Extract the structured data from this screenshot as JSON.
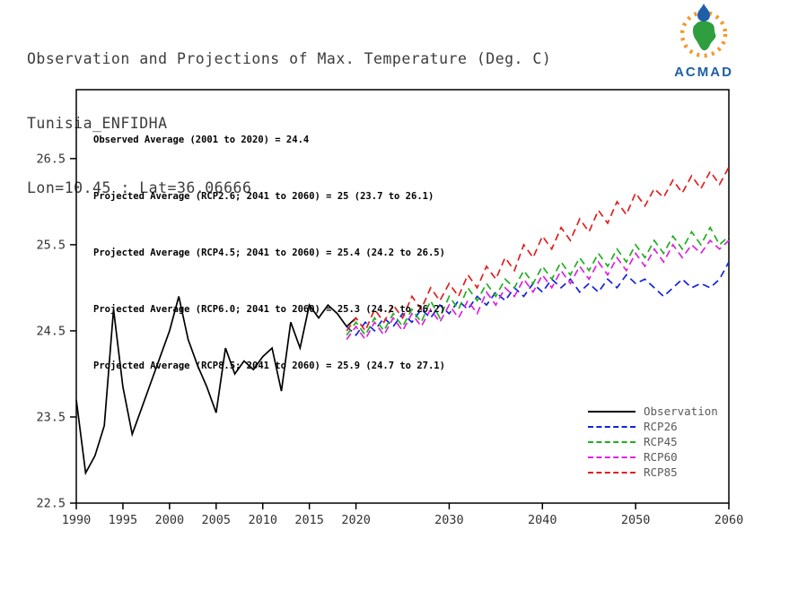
{
  "header": {
    "title": "Observation and Projections of Max. Temperature (Deg. C)",
    "station": "Tunisia_ENFIDHA",
    "coords": "Lon=10.45 : Lat=36.06666"
  },
  "logo": {
    "text": "ACMAD",
    "sun_color": "#F2992E",
    "africa_color": "#2E9E3E",
    "drop_color": "#1E5FA8",
    "text_color": "#1E5FA8"
  },
  "chart_data": {
    "type": "line",
    "title": "Observation and Projections of Max. Temperature (Deg. C)",
    "subtitle": "Tunisia_ENFIDHA Lon=10.45 : Lat=36.06666",
    "xlabel": "",
    "ylabel": "",
    "xlim": [
      1990,
      2060
    ],
    "ylim": [
      22.5,
      27.3
    ],
    "xticks": [
      1990,
      1995,
      2000,
      2005,
      2010,
      2015,
      2020,
      2030,
      2040,
      2050,
      2060
    ],
    "yticks": [
      22.5,
      23.5,
      24.5,
      25.5,
      26.5
    ],
    "grid": false,
    "legend_position": "inside-bottom-right",
    "annotations": [
      "Observed Average (2001 to 2020) = 24.4",
      "Projected Average (RCP2.6; 2041 to 2060) = 25 (23.7 to 26.1)",
      "Projected Average (RCP4.5; 2041 to 2060) = 25.4 (24.2 to 26.5)",
      "Projected Average (RCP6.0; 2041 to 2060) = 25.3 (24.2 to 26.2)",
      "Projected Average (RCP8.5; 2041 to 2060) = 25.9 (24.7 to 27.1)"
    ],
    "series": [
      {
        "name": "Observation",
        "color": "#000000",
        "line_style": "solid",
        "years": [
          1990,
          1991,
          1992,
          1993,
          1994,
          1995,
          1996,
          1997,
          1998,
          1999,
          2000,
          2001,
          2002,
          2003,
          2004,
          2005,
          2006,
          2007,
          2008,
          2009,
          2010,
          2011,
          2012,
          2013,
          2014,
          2015,
          2016,
          2017,
          2018,
          2019,
          2020
        ],
        "values": [
          23.7,
          22.85,
          23.05,
          23.4,
          24.75,
          23.85,
          23.3,
          23.6,
          23.9,
          24.2,
          24.5,
          24.9,
          24.4,
          24.1,
          23.85,
          23.55,
          24.3,
          24.0,
          24.15,
          24.05,
          24.2,
          24.3,
          23.8,
          24.6,
          24.3,
          24.8,
          24.65,
          24.8,
          24.7,
          24.55,
          24.65
        ]
      },
      {
        "name": "RCP26",
        "color": "#1122DD",
        "line_style": "dashed",
        "years": [
          2019,
          2020,
          2021,
          2022,
          2023,
          2024,
          2025,
          2026,
          2027,
          2028,
          2029,
          2030,
          2031,
          2032,
          2033,
          2034,
          2035,
          2036,
          2037,
          2038,
          2039,
          2040,
          2041,
          2042,
          2043,
          2044,
          2045,
          2046,
          2047,
          2048,
          2049,
          2050,
          2051,
          2052,
          2053,
          2054,
          2055,
          2056,
          2057,
          2058,
          2059,
          2060
        ],
        "values": [
          24.55,
          24.45,
          24.6,
          24.5,
          24.65,
          24.55,
          24.7,
          24.6,
          24.75,
          24.65,
          24.8,
          24.7,
          24.85,
          24.75,
          24.9,
          24.8,
          24.95,
          24.85,
          25.0,
          24.9,
          25.05,
          24.95,
          25.1,
          25.0,
          25.1,
          24.95,
          25.05,
          24.95,
          25.1,
          25.0,
          25.15,
          25.05,
          25.1,
          25.0,
          24.9,
          25.0,
          25.1,
          25.0,
          25.05,
          25.0,
          25.1,
          25.3
        ]
      },
      {
        "name": "RCP45",
        "color": "#1FAF1F",
        "line_style": "dashed",
        "years": [
          2019,
          2020,
          2021,
          2022,
          2023,
          2024,
          2025,
          2026,
          2027,
          2028,
          2029,
          2030,
          2031,
          2032,
          2033,
          2034,
          2035,
          2036,
          2037,
          2038,
          2039,
          2040,
          2041,
          2042,
          2043,
          2044,
          2045,
          2046,
          2047,
          2048,
          2049,
          2050,
          2051,
          2052,
          2053,
          2054,
          2055,
          2056,
          2057,
          2058,
          2059,
          2060
        ],
        "values": [
          24.45,
          24.6,
          24.45,
          24.65,
          24.5,
          24.7,
          24.55,
          24.75,
          24.6,
          24.85,
          24.65,
          24.9,
          24.75,
          25.0,
          24.85,
          25.05,
          24.9,
          25.1,
          25.0,
          25.2,
          25.05,
          25.25,
          25.1,
          25.3,
          25.15,
          25.35,
          25.2,
          25.4,
          25.25,
          25.45,
          25.3,
          25.5,
          25.35,
          25.55,
          25.4,
          25.6,
          25.45,
          25.65,
          25.5,
          25.7,
          25.5,
          25.6
        ]
      },
      {
        "name": "RCP60",
        "color": "#DD22DD",
        "line_style": "dashed",
        "years": [
          2019,
          2020,
          2021,
          2022,
          2023,
          2024,
          2025,
          2026,
          2027,
          2028,
          2029,
          2030,
          2031,
          2032,
          2033,
          2034,
          2035,
          2036,
          2037,
          2038,
          2039,
          2040,
          2041,
          2042,
          2043,
          2044,
          2045,
          2046,
          2047,
          2048,
          2049,
          2050,
          2051,
          2052,
          2053,
          2054,
          2055,
          2056,
          2057,
          2058,
          2059,
          2060
        ],
        "values": [
          24.4,
          24.55,
          24.4,
          24.6,
          24.45,
          24.65,
          24.5,
          24.7,
          24.55,
          24.75,
          24.6,
          24.8,
          24.65,
          24.85,
          24.7,
          24.95,
          24.8,
          25.0,
          24.9,
          25.1,
          24.95,
          25.15,
          25.0,
          25.2,
          25.05,
          25.25,
          25.1,
          25.3,
          25.15,
          25.35,
          25.2,
          25.4,
          25.25,
          25.45,
          25.3,
          25.5,
          25.35,
          25.5,
          25.4,
          25.55,
          25.45,
          25.55
        ]
      },
      {
        "name": "RCP85",
        "color": "#E01F1F",
        "line_style": "dashed",
        "years": [
          2019,
          2020,
          2021,
          2022,
          2023,
          2024,
          2025,
          2026,
          2027,
          2028,
          2029,
          2030,
          2031,
          2032,
          2033,
          2034,
          2035,
          2036,
          2037,
          2038,
          2039,
          2040,
          2041,
          2042,
          2043,
          2044,
          2045,
          2046,
          2047,
          2048,
          2049,
          2050,
          2051,
          2052,
          2053,
          2054,
          2055,
          2056,
          2057,
          2058,
          2059,
          2060
        ],
        "values": [
          24.5,
          24.65,
          24.5,
          24.75,
          24.6,
          24.8,
          24.65,
          24.9,
          24.75,
          25.0,
          24.85,
          25.05,
          24.9,
          25.15,
          25.0,
          25.25,
          25.1,
          25.35,
          25.2,
          25.5,
          25.35,
          25.6,
          25.45,
          25.7,
          25.55,
          25.8,
          25.65,
          25.9,
          25.75,
          26.0,
          25.85,
          26.1,
          25.95,
          26.15,
          26.05,
          26.25,
          26.1,
          26.3,
          26.15,
          26.35,
          26.2,
          26.4
        ]
      }
    ]
  }
}
